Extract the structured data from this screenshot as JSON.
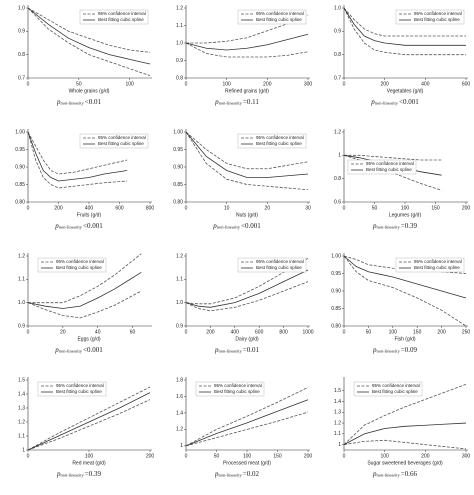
{
  "chart_data": [
    {
      "type": "line",
      "xlabel": "Whole grains (g/d)",
      "x": [
        0,
        20,
        40,
        60,
        80,
        100,
        120
      ],
      "xlim": [
        0,
        120
      ],
      "xticks": [
        0,
        50,
        100
      ],
      "ylim": [
        0.7,
        1.0
      ],
      "yticks": [
        0.7,
        0.8,
        0.9,
        {
          "value": 1,
          "label": "1.0"
        }
      ],
      "legend": "upper right",
      "series": [
        {
          "name": "95% confidence interval",
          "color": "#555",
          "style": "dashed",
          "upper": [
            1.0,
            0.95,
            0.9,
            0.87,
            0.84,
            0.82,
            0.81
          ],
          "lower": [
            1.0,
            0.91,
            0.85,
            0.8,
            0.77,
            0.74,
            0.71
          ]
        },
        {
          "name": "Best fitting cubic spline",
          "color": "#333",
          "style": "solid",
          "values": [
            1.0,
            0.93,
            0.87,
            0.83,
            0.8,
            0.78,
            0.76
          ]
        }
      ],
      "annotation": {
        "symbol": "p",
        "subscript": "non-linearity",
        "value": "<0.01"
      }
    },
    {
      "type": "line",
      "xlabel": "Refined grains (g/d)",
      "x": [
        0,
        50,
        100,
        150,
        200,
        250,
        300
      ],
      "xlim": [
        0,
        300
      ],
      "xticks": [
        0,
        100,
        200,
        300
      ],
      "ylim": [
        0.8,
        1.2
      ],
      "yticks": [
        0.8,
        0.9,
        {
          "value": 1,
          "label": "1.0"
        },
        1.1,
        1.2
      ],
      "legend": "upper right",
      "series": [
        {
          "name": "95% confidence interval",
          "color": "#555",
          "style": "dashed",
          "upper": [
            1.0,
            1.0,
            1.01,
            1.03,
            1.07,
            1.11,
            1.16
          ],
          "lower": [
            1.0,
            0.94,
            0.92,
            0.92,
            0.92,
            0.93,
            0.95
          ]
        },
        {
          "name": "Best fitting cubic spline",
          "color": "#333",
          "style": "solid",
          "values": [
            1.0,
            0.97,
            0.96,
            0.97,
            0.99,
            1.02,
            1.05
          ]
        }
      ],
      "annotation": {
        "symbol": "p",
        "subscript": "non-linearity",
        "value": "=0.11"
      }
    },
    {
      "type": "line",
      "xlabel": "Vegetables (g/d)",
      "x": [
        0,
        50,
        100,
        150,
        200,
        300,
        400,
        500,
        600
      ],
      "xlim": [
        0,
        600
      ],
      "xticks": [
        0,
        200,
        400,
        600
      ],
      "ylim": [
        0.7,
        1.0
      ],
      "yticks": [
        0.7,
        0.8,
        0.9,
        {
          "value": 1,
          "label": "1.0"
        }
      ],
      "legend": "upper right",
      "series": [
        {
          "name": "95% confidence interval",
          "color": "#555",
          "style": "dashed",
          "upper": [
            1.0,
            0.95,
            0.91,
            0.89,
            0.88,
            0.88,
            0.88,
            0.88,
            0.88
          ],
          "lower": [
            1.0,
            0.91,
            0.85,
            0.82,
            0.81,
            0.8,
            0.8,
            0.8,
            0.8
          ]
        },
        {
          "name": "Best fitting cubic spline",
          "color": "#333",
          "style": "solid",
          "values": [
            1.0,
            0.93,
            0.88,
            0.86,
            0.85,
            0.84,
            0.84,
            0.84,
            0.84
          ]
        }
      ],
      "annotation": {
        "symbol": "p",
        "subscript": "non-linearity",
        "value": "<0.001"
      }
    },
    {
      "type": "line",
      "xlabel": "Fruits (g/d)",
      "x": [
        0,
        50,
        100,
        150,
        200,
        300,
        400,
        500,
        650
      ],
      "xlim": [
        0,
        800
      ],
      "xticks": [
        0,
        200,
        400,
        600,
        800
      ],
      "ylim": [
        0.8,
        1.0
      ],
      "yticks": [
        {
          "value": 0.8,
          "label": "0.80"
        },
        0.85,
        {
          "value": 0.9,
          "label": "0.90"
        },
        0.95,
        {
          "value": 1,
          "label": "1.00"
        }
      ],
      "legend": "upper right",
      "series": [
        {
          "name": "95% confidence interval",
          "color": "#555",
          "style": "dashed",
          "upper": [
            1.0,
            0.96,
            0.92,
            0.89,
            0.88,
            0.885,
            0.895,
            0.905,
            0.92
          ],
          "lower": [
            1.0,
            0.92,
            0.87,
            0.85,
            0.84,
            0.845,
            0.85,
            0.855,
            0.86
          ]
        },
        {
          "name": "Best fitting cubic spline",
          "color": "#333",
          "style": "solid",
          "values": [
            1.0,
            0.94,
            0.89,
            0.87,
            0.86,
            0.865,
            0.87,
            0.88,
            0.89
          ]
        }
      ],
      "annotation": {
        "symbol": "p",
        "subscript": "non-linearity",
        "value": "<0.001"
      }
    },
    {
      "type": "line",
      "xlabel": "Nuts (g/d)",
      "x": [
        0,
        5,
        10,
        15,
        20,
        25,
        30
      ],
      "xlim": [
        0,
        30
      ],
      "xticks": [
        0,
        10,
        20,
        30
      ],
      "ylim": [
        0.8,
        1.0
      ],
      "yticks": [
        {
          "value": 0.8,
          "label": "0.80"
        },
        0.85,
        {
          "value": 0.9,
          "label": "0.90"
        },
        0.95,
        {
          "value": 1,
          "label": "1.00"
        }
      ],
      "legend": "upper right",
      "series": [
        {
          "name": "95% confidence interval",
          "color": "#555",
          "style": "dashed",
          "upper": [
            1.0,
            0.95,
            0.91,
            0.895,
            0.895,
            0.905,
            0.915
          ],
          "lower": [
            1.0,
            0.91,
            0.865,
            0.85,
            0.845,
            0.84,
            0.835
          ]
        },
        {
          "name": "Best fitting cubic spline",
          "color": "#333",
          "style": "solid",
          "values": [
            1.0,
            0.93,
            0.89,
            0.87,
            0.87,
            0.875,
            0.88
          ]
        }
      ],
      "annotation": {
        "symbol": "p",
        "subscript": "non-linearity",
        "value": "<0.001"
      }
    },
    {
      "type": "line",
      "xlabel": "Legumes (g/d)",
      "x": [
        0,
        25,
        50,
        75,
        100,
        125,
        160
      ],
      "xlim": [
        0,
        200
      ],
      "xticks": [
        0,
        50,
        100,
        150,
        200
      ],
      "ylim": [
        0.6,
        1.2
      ],
      "yticks": [
        0.6,
        0.8,
        1,
        1.2
      ],
      "legend": "center",
      "series": [
        {
          "name": "95% confidence interval",
          "color": "#555",
          "style": "dashed",
          "upper": [
            1.0,
            1.0,
            0.99,
            0.98,
            0.97,
            0.96,
            0.96
          ],
          "lower": [
            1.0,
            0.96,
            0.91,
            0.86,
            0.81,
            0.76,
            0.7
          ]
        },
        {
          "name": "Best fitting cubic spline",
          "color": "#333",
          "style": "solid",
          "values": [
            1.0,
            0.98,
            0.95,
            0.92,
            0.89,
            0.86,
            0.83
          ]
        }
      ],
      "annotation": {
        "symbol": "p",
        "subscript": "non-linearity",
        "value": "=0.39"
      }
    },
    {
      "type": "line",
      "xlabel": "Eggs (g/d)",
      "x": [
        0,
        10,
        20,
        30,
        40,
        50,
        65
      ],
      "xlim": [
        0,
        70
      ],
      "xticks": [
        0,
        20,
        40,
        60
      ],
      "ylim": [
        0.9,
        1.2
      ],
      "yticks": [
        0.9,
        {
          "value": 1,
          "label": "1.0"
        },
        1.1,
        1.2
      ],
      "legend": "upper left",
      "series": [
        {
          "name": "95% confidence interval",
          "color": "#555",
          "style": "dashed",
          "upper": [
            1.0,
            1.0,
            1.0,
            1.03,
            1.07,
            1.12,
            1.21
          ],
          "lower": [
            1.0,
            0.97,
            0.945,
            0.935,
            0.96,
            0.99,
            1.05
          ]
        },
        {
          "name": "Best fitting cubic spline",
          "color": "#333",
          "style": "solid",
          "values": [
            1.0,
            0.985,
            0.975,
            0.985,
            1.02,
            1.06,
            1.13
          ]
        }
      ],
      "annotation": {
        "symbol": "p",
        "subscript": "non-linearity",
        "value": "<0.001"
      }
    },
    {
      "type": "line",
      "xlabel": "Dairy (g/d)",
      "x": [
        0,
        100,
        200,
        400,
        600,
        800,
        1000
      ],
      "xlim": [
        0,
        1000
      ],
      "xticks": [
        0,
        200,
        400,
        600,
        800,
        1000
      ],
      "ylim": [
        0.9,
        1.2
      ],
      "yticks": [
        0.9,
        {
          "value": 1,
          "label": "1.0"
        },
        1.1,
        1.2
      ],
      "legend": "upper right",
      "series": [
        {
          "name": "95% confidence interval",
          "color": "#555",
          "style": "dashed",
          "upper": [
            1.0,
            0.995,
            0.995,
            1.02,
            1.07,
            1.13,
            1.19
          ],
          "lower": [
            1.0,
            0.975,
            0.965,
            0.98,
            1.01,
            1.05,
            1.09
          ]
        },
        {
          "name": "Best fitting cubic spline",
          "color": "#333",
          "style": "solid",
          "values": [
            1.0,
            0.985,
            0.98,
            1.0,
            1.04,
            1.09,
            1.14
          ]
        }
      ],
      "annotation": {
        "symbol": "p",
        "subscript": "non-linearity",
        "value": "=0.01"
      }
    },
    {
      "type": "line",
      "xlabel": "Fish (g/d)",
      "x": [
        0,
        25,
        50,
        100,
        150,
        200,
        250
      ],
      "xlim": [
        0,
        250
      ],
      "xticks": [
        0,
        50,
        100,
        150,
        200,
        250
      ],
      "ylim": [
        0.8,
        1.0
      ],
      "yticks": [
        {
          "value": 0.8,
          "label": "0.80"
        },
        0.85,
        {
          "value": 0.9,
          "label": "0.90"
        },
        0.95,
        {
          "value": 1,
          "label": "1.00"
        }
      ],
      "legend": "upper right",
      "series": [
        {
          "name": "95% confidence interval",
          "color": "#555",
          "style": "dashed",
          "upper": [
            1.0,
            0.99,
            0.975,
            0.965,
            0.96,
            0.955,
            0.95
          ],
          "lower": [
            1.0,
            0.955,
            0.93,
            0.91,
            0.88,
            0.845,
            0.8
          ]
        },
        {
          "name": "Best fitting cubic spline",
          "color": "#333",
          "style": "solid",
          "values": [
            1.0,
            0.97,
            0.955,
            0.94,
            0.92,
            0.9,
            0.88
          ]
        }
      ],
      "annotation": {
        "symbol": "p",
        "subscript": "non-linearity",
        "value": "=0.09"
      }
    },
    {
      "type": "line",
      "xlabel": "Red meat (g/d)",
      "x": [
        0,
        50,
        100,
        150,
        200
      ],
      "xlim": [
        0,
        200
      ],
      "xticks": [
        0,
        100,
        200
      ],
      "ylim": [
        1,
        1.5
      ],
      "yticks": [
        1,
        1.1,
        1.2,
        1.3,
        1.4,
        1.5
      ],
      "legend": "upper left",
      "series": [
        {
          "name": "95% confidence interval",
          "color": "#555",
          "style": "dashed",
          "upper": [
            1.0,
            1.12,
            1.23,
            1.34,
            1.45
          ],
          "lower": [
            1.0,
            1.08,
            1.17,
            1.26,
            1.36
          ]
        },
        {
          "name": "Best fitting cubic spline",
          "color": "#333",
          "style": "solid",
          "values": [
            1.0,
            1.1,
            1.2,
            1.3,
            1.41
          ]
        }
      ],
      "annotation": {
        "symbol": "p",
        "subscript": "non-linearity",
        "value": "=0.39"
      }
    },
    {
      "type": "line",
      "xlabel": "Processed meat (g/d)",
      "x": [
        0,
        50,
        100,
        150,
        200
      ],
      "xlim": [
        0,
        200
      ],
      "xticks": [
        0,
        50,
        100,
        150,
        200
      ],
      "ylim": [
        0.95,
        1.8
      ],
      "yticks": [
        1,
        1.2,
        1.4,
        1.6,
        1.8
      ],
      "legend": "upper left",
      "series": [
        {
          "name": "95% confidence interval",
          "color": "#555",
          "style": "dashed",
          "upper": [
            1.0,
            1.2,
            1.36,
            1.53,
            1.71
          ],
          "lower": [
            1.0,
            1.1,
            1.2,
            1.3,
            1.41
          ]
        },
        {
          "name": "Best fitting cubic spline",
          "color": "#333",
          "style": "solid",
          "values": [
            1.0,
            1.15,
            1.28,
            1.42,
            1.56
          ]
        }
      ],
      "annotation": {
        "symbol": "p",
        "subscript": "non-linearity",
        "value": "=0.02"
      }
    },
    {
      "type": "line",
      "xlabel": "Sugar sweetened beverages (g/d)",
      "x": [
        0,
        50,
        100,
        150,
        200,
        250,
        300
      ],
      "xlim": [
        0,
        300
      ],
      "xticks": [
        0,
        100,
        200,
        300
      ],
      "ylim": [
        0.95,
        1.6
      ],
      "yticks": [
        1,
        1.1,
        1.2,
        1.3,
        1.4,
        1.5
      ],
      "legend": "upper left",
      "series": [
        {
          "name": "95% confidence interval",
          "color": "#555",
          "style": "dashed",
          "upper": [
            1.0,
            1.18,
            1.27,
            1.35,
            1.42,
            1.49,
            1.56
          ],
          "lower": [
            1.0,
            1.03,
            1.04,
            1.02,
            1.0,
            0.98,
            0.96
          ]
        },
        {
          "name": "Best fitting cubic spline",
          "color": "#333",
          "style": "solid",
          "values": [
            1.0,
            1.1,
            1.15,
            1.17,
            1.18,
            1.19,
            1.2
          ]
        }
      ],
      "annotation": {
        "symbol": "p",
        "subscript": "non-linearity",
        "value": "=0.66"
      }
    }
  ]
}
